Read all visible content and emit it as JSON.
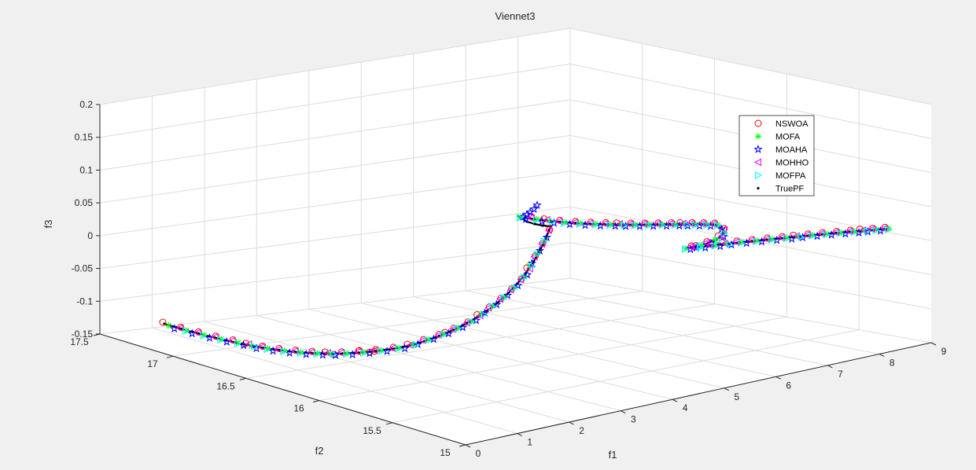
{
  "chart_data": {
    "type": "scatter",
    "title": "Viennet3",
    "xlabel": "f1",
    "ylabel": "f2",
    "zlabel": "f3",
    "xlim": [
      0,
      9
    ],
    "ylim": [
      15,
      17.5
    ],
    "zlim": [
      -0.15,
      0.2
    ],
    "x_ticks": [
      "0",
      "1",
      "2",
      "3",
      "4",
      "5",
      "6",
      "7",
      "8",
      "9"
    ],
    "y_ticks": [
      "15",
      "15.5",
      "16",
      "16.5",
      "17",
      "17.5"
    ],
    "z_ticks": [
      "-0.15",
      "-0.1",
      "-0.05",
      "0",
      "0.05",
      "0.1",
      "0.15",
      "0.2"
    ],
    "grid": true,
    "legend_position": "top-right",
    "series": [
      {
        "name": "NSWOA",
        "marker": "circle",
        "color": "#ff0000"
      },
      {
        "name": "MOFA",
        "marker": "asterisk",
        "color": "#00ff00"
      },
      {
        "name": "MOAHA",
        "marker": "pentagram",
        "color": "#0000ff"
      },
      {
        "name": "MOHHO",
        "marker": "triangle-left",
        "color": "#ff00ff"
      },
      {
        "name": "MOFPA",
        "marker": "triangle-right",
        "color": "#00ffff"
      },
      {
        "name": "TruePF",
        "marker": "point",
        "color": "#000000"
      }
    ]
  }
}
